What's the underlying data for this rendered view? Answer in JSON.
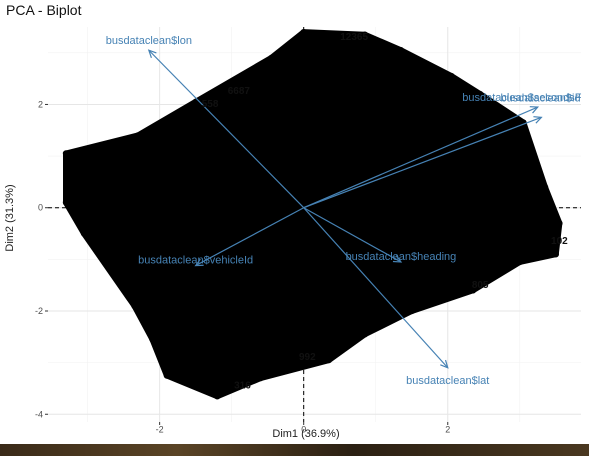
{
  "chart_data": {
    "type": "scatter",
    "title": "PCA - Biplot",
    "xlabel": "Dim1 (36.9%)",
    "ylabel": "Dim2 (31.3%)",
    "xlim": [
      -3.55,
      3.85
    ],
    "ylim": [
      -4.15,
      3.5
    ],
    "x_ticks": [
      -2,
      0,
      2
    ],
    "y_ticks": [
      -4,
      -2,
      0,
      2
    ],
    "grid": true,
    "reference_lines": {
      "x": 0,
      "y": 0,
      "style": "dashed"
    },
    "point_color": "#000000",
    "variable_color": "#4682B4",
    "variables": [
      {
        "name": "busdataclean$lon",
        "x": -2.15,
        "y": 3.05
      },
      {
        "name": "busdataclean$lat",
        "x": 2.0,
        "y": -3.1
      },
      {
        "name": "busdataclean$heading",
        "x": 1.35,
        "y": -1.05
      },
      {
        "name": "busdataclean$vehicleId",
        "x": -1.5,
        "y": -1.12
      },
      {
        "name": "busdataclean$secondsF",
        "x": 3.25,
        "y": 1.95
      },
      {
        "name": "busdataclean$id",
        "x": 3.3,
        "y": 1.75
      }
    ],
    "observation_labels": [
      {
        "text": "12365",
        "x": 0.7,
        "y": 3.25
      },
      {
        "text": "558",
        "x": -1.3,
        "y": 1.95
      },
      {
        "text": "6687",
        "x": -0.9,
        "y": 2.2
      },
      {
        "text": "992",
        "x": 0.05,
        "y": -2.95
      },
      {
        "text": "316",
        "x": -0.85,
        "y": -3.5
      },
      {
        "text": "805",
        "x": 2.45,
        "y": -1.55
      },
      {
        "text": "102",
        "x": 3.55,
        "y": -0.7
      }
    ],
    "point_cloud": [
      [
        -3.3,
        1.05
      ],
      [
        -2.3,
        1.4
      ],
      [
        -1.5,
        2.05
      ],
      [
        -0.45,
        2.9
      ],
      [
        0.0,
        3.4
      ],
      [
        0.85,
        3.35
      ],
      [
        1.35,
        3.05
      ],
      [
        2.05,
        2.55
      ],
      [
        2.45,
        2.2
      ],
      [
        3.05,
        1.65
      ],
      [
        3.35,
        0.4
      ],
      [
        3.55,
        -0.3
      ],
      [
        3.5,
        -0.9
      ],
      [
        3.0,
        -1.05
      ],
      [
        2.35,
        -1.6
      ],
      [
        1.5,
        -2.0
      ],
      [
        0.85,
        -2.45
      ],
      [
        0.35,
        -2.95
      ],
      [
        -0.6,
        -3.3
      ],
      [
        -1.2,
        -3.65
      ],
      [
        -1.9,
        -3.25
      ],
      [
        -2.1,
        -2.55
      ],
      [
        -2.35,
        -1.9
      ],
      [
        -3.05,
        -0.5
      ],
      [
        -3.3,
        0.1
      ]
    ],
    "point_cloud_fill": "#000000"
  }
}
